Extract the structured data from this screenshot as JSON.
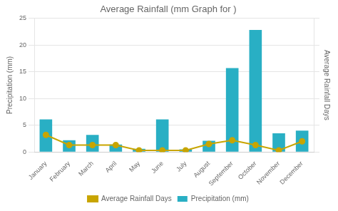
{
  "chart_data": {
    "type": "bar",
    "title": "Average Rainfall (mm Graph for )",
    "categories": [
      "January",
      "February",
      "March",
      "April",
      "May",
      "June",
      "July",
      "August",
      "September",
      "October",
      "November",
      "December"
    ],
    "series": [
      {
        "name": "Precipitation (mm)",
        "type": "bar",
        "color": "#29afc4",
        "values": [
          6.1,
          2.2,
          3.2,
          1.4,
          0.6,
          6.1,
          0.5,
          2.1,
          15.7,
          22.8,
          3.5,
          4.0
        ]
      },
      {
        "name": "Average Rainfall Days",
        "type": "line",
        "color": "#c8a500",
        "marker": "circle",
        "axis": "y2",
        "values": [
          3.2,
          1.3,
          1.3,
          1.3,
          0.3,
          0.3,
          0.3,
          1.5,
          2.2,
          1.3,
          0.3,
          2.0
        ]
      }
    ],
    "ylabel": "Precipitation (mm)",
    "y2label": "Average Rainfall Days",
    "ylim": [
      0,
      25
    ],
    "yticks": [
      0,
      5,
      10,
      15,
      20,
      25
    ],
    "y2lim": [
      0,
      25
    ],
    "grid": true,
    "legend": "bottom"
  }
}
